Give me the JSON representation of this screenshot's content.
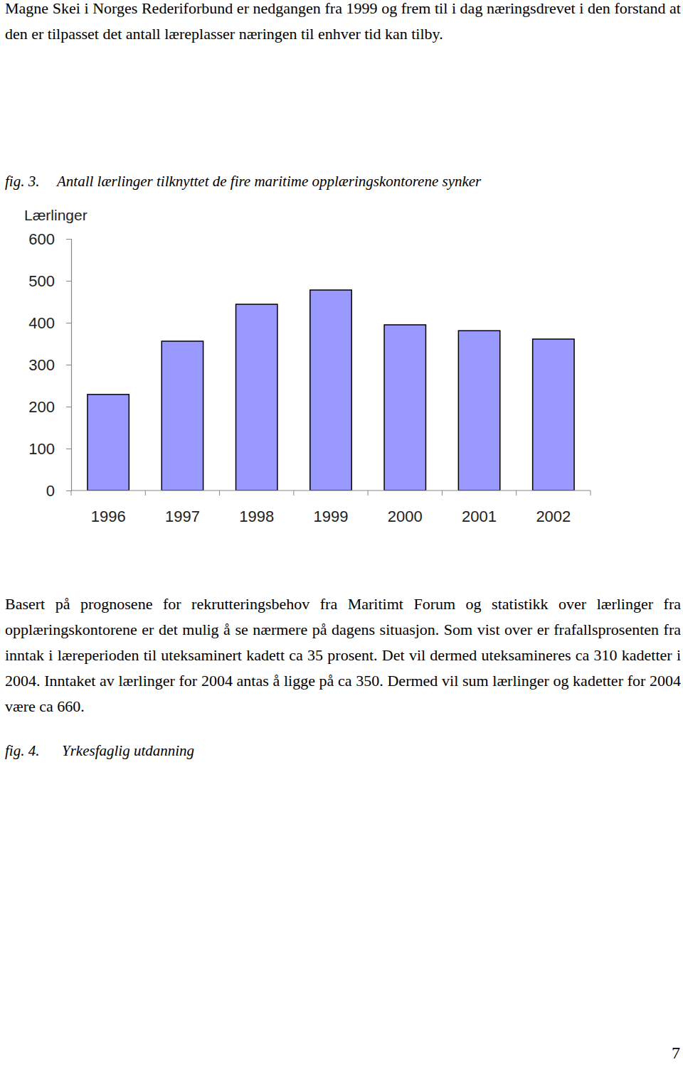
{
  "paragraphs": [
    "Magne Skei i Norges Rederiforbund er nedgangen fra 1999 og frem til i dag næringsdrevet i den forstand at den er tilpasset det antall læreplasser næringen til enhver tid kan tilby.",
    "Basert på prognosene for rekrutteringsbehov fra Maritimt Forum og statistikk over lærlinger fra opplæringskontorene er det mulig å se nærmere på dagens situasjon. Som vist over er frafallsprosenten fra inntak i læreperioden til uteksaminert kadett ca 35 prosent. Det vil dermed uteksamineres ca 310 kadetter i 2004. Inntaket av lærlinger for 2004 antas å ligge på ca 350. Dermed vil sum lærlinger og kadetter for 2004 være ca 660."
  ],
  "figures": [
    {
      "label": "fig. 3.",
      "caption": "Antall lærlinger tilknyttet de fire maritime opplæringskontorene synker"
    },
    {
      "label": "fig. 4.",
      "caption": "Yrkesfaglig utdanning"
    }
  ],
  "chart_data": {
    "type": "bar",
    "y_label": "Lærlinger",
    "categories": [
      "1996",
      "1997",
      "1998",
      "1999",
      "2000",
      "2001",
      "2002"
    ],
    "values": [
      229,
      356,
      444,
      478,
      395,
      381,
      361
    ],
    "color": "#9999ff",
    "ylim": [
      0,
      600
    ],
    "yticks": [
      0,
      100,
      200,
      300,
      400,
      500,
      600
    ]
  },
  "page_number": 7
}
